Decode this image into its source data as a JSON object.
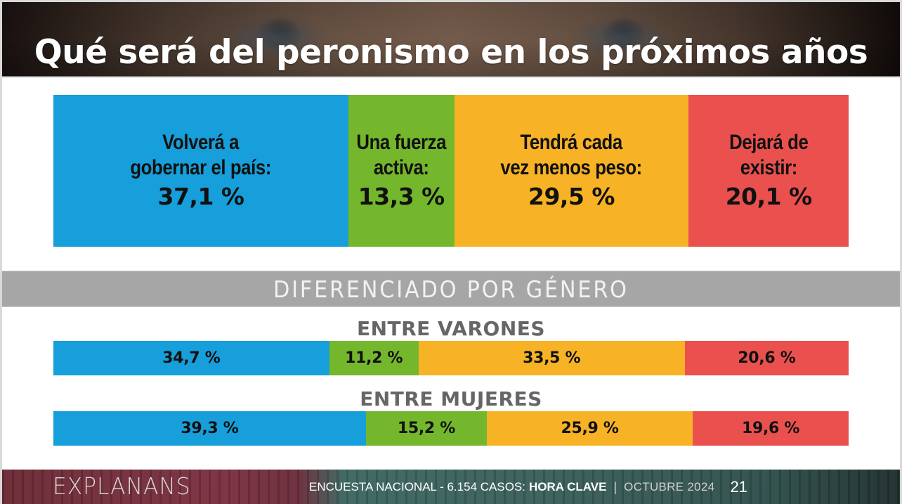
{
  "header": {
    "title": "Qué será del peronismo en los próximos años"
  },
  "colors": {
    "blue": "#169fda",
    "green": "#75b72c",
    "orange": "#f7b225",
    "red": "#ea514e",
    "band_gray": "#a6a6a6",
    "heading_gray": "#666666"
  },
  "section_band": {
    "label": "DIFERENCIADO POR GÉNERO"
  },
  "chart_data": [
    {
      "type": "bar",
      "orientation": "horizontal-stacked",
      "title": "Qué será del peronismo en los próximos años",
      "categories": [
        "Volverá a\ngobernar el país:",
        "Una fuerza\nactiva:",
        "Tendrá cada\nvez menos peso:",
        "Dejará de\nexistir:"
      ],
      "values": [
        37.1,
        13.3,
        29.5,
        20.1
      ],
      "value_labels": [
        "37,1 %",
        "13,3 %",
        "29,5 %",
        "20,1 %"
      ],
      "unit": "%"
    },
    {
      "type": "bar",
      "orientation": "horizontal-stacked",
      "title": "ENTRE VARONES",
      "categories": [
        "Volverá a gobernar el país",
        "Una fuerza activa",
        "Tendrá cada vez menos peso",
        "Dejará de existir"
      ],
      "values": [
        34.7,
        11.2,
        33.5,
        20.6
      ],
      "value_labels": [
        "34,7 %",
        "11,2 %",
        "33,5 %",
        "20,6 %"
      ],
      "unit": "%"
    },
    {
      "type": "bar",
      "orientation": "horizontal-stacked",
      "title": "ENTRE MUJERES",
      "categories": [
        "Volverá a gobernar el país",
        "Una fuerza activa",
        "Tendrá cada vez menos peso",
        "Dejará de existir"
      ],
      "values": [
        39.3,
        15.2,
        25.9,
        19.6
      ],
      "value_labels": [
        "39,3 %",
        "15,2 %",
        "25,9 %",
        "19,6 %"
      ],
      "unit": "%"
    }
  ],
  "footer": {
    "logo": "EXPLANANS",
    "survey": "ENCUESTA NACIONAL - 6.154 CASOS:",
    "brand": "HORA CLAVE",
    "separator": "|",
    "date": "OCTUBRE 2024",
    "page": "21"
  }
}
